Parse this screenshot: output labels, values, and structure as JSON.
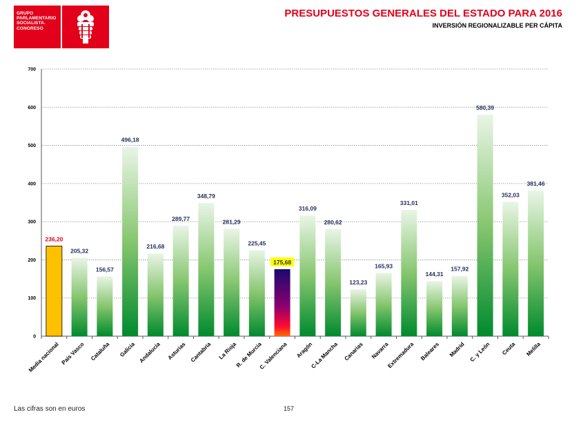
{
  "header": {
    "logo_lines": [
      "GRUPO",
      "PARLAMENTARIO",
      "SOCIALISTA.",
      "CONGRESO"
    ],
    "title": "PRESUPUESTOS GENERALES DEL ESTADO PARA 2016",
    "subtitle": "INVERSIÓN REGIONALIZABLE PER CÁPITA"
  },
  "footer": {
    "note": "Las cifras son en euros",
    "page_number": "157"
  },
  "colors": {
    "brand_red": "#e2001a",
    "highlight_bar": "#ffc000",
    "green_dark": "#008a2e",
    "green_light": "#e9f5e6",
    "valenciana_top": "#1a0a70",
    "valenciana_bottom": "#ff2a00",
    "valenciana_label_bg": "#ffff00"
  },
  "chart_data": {
    "type": "bar",
    "title": "PRESUPUESTOS GENERALES DEL ESTADO PARA 2016",
    "subtitle": "INVERSIÓN REGIONALIZABLE PER CÁPITA",
    "xlabel": "",
    "ylabel": "",
    "ylim": [
      0,
      700
    ],
    "yticks": [
      0,
      100,
      200,
      300,
      400,
      500,
      600,
      700
    ],
    "grid": true,
    "categories": [
      "Media nacional",
      "País Vasco",
      "Cataluña",
      "Galicia",
      "Andalucía",
      "Asturias",
      "Cantabria",
      "La Rioja",
      "R. de Murcia",
      "C. Valenciana",
      "Aragón",
      "C-La Mancha",
      "Canarias",
      "Navarra",
      "Extremadura",
      "Baleares",
      "Madrid",
      "C. y León",
      "Ceuta",
      "Melilla"
    ],
    "values": [
      236.2,
      205.32,
      156.57,
      496.18,
      216.68,
      289.77,
      348.79,
      281.29,
      225.45,
      175.68,
      316.09,
      280.62,
      123.23,
      165.93,
      331.01,
      144.31,
      157.92,
      580.39,
      352.03,
      381.46
    ],
    "value_labels": [
      "236,20",
      "205,32",
      "156,57",
      "496,18",
      "216,68",
      "289,77",
      "348,79",
      "281,29",
      "225,45",
      "175,68",
      "316,09",
      "280,62",
      "123,23",
      "165,93",
      "331,01",
      "144,31",
      "157,92",
      "580,39",
      "352,03",
      "381,46"
    ],
    "bar_styles": [
      "highlight",
      "green",
      "green",
      "green",
      "green",
      "green",
      "green",
      "green",
      "green",
      "valenciana",
      "green",
      "green",
      "green",
      "green",
      "green",
      "green",
      "green",
      "green",
      "green",
      "green"
    ]
  }
}
